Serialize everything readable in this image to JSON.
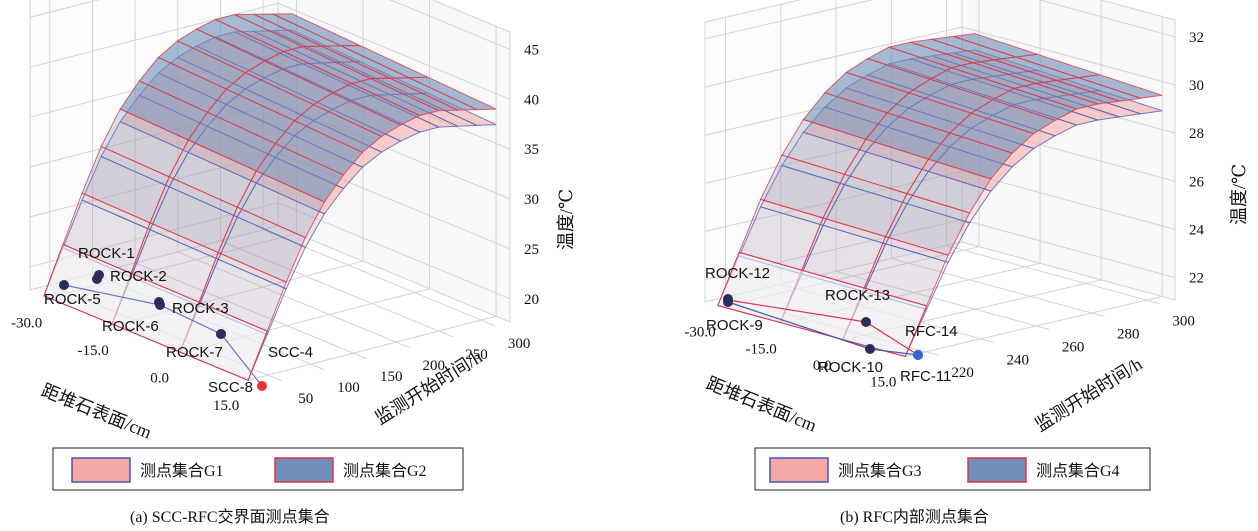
{
  "chart_data": [
    {
      "type": "surface3d",
      "caption": "(a)  SCC-RFC交界面测点集合",
      "xlabel": "距堆石表面/cm",
      "ylabel": "监测开始时间/h",
      "zlabel": "温度/℃",
      "x_ticks": [
        "-30.0",
        "-15.0",
        "0.0",
        "15.0"
      ],
      "y_ticks": [
        "50",
        "100",
        "150",
        "200",
        "250",
        "300"
      ],
      "z_ticks": [
        "20",
        "25",
        "30",
        "35",
        "40",
        "45"
      ],
      "grid": true,
      "legend": {
        "position": "bottom",
        "entries": [
          "测点集合G1",
          "测点集合G2"
        ]
      },
      "series": [
        {
          "name": "测点集合G1",
          "color": "#f4a8a4",
          "edge": "#4455bb"
        },
        {
          "name": "测点集合G2",
          "color": "#6f8fb8",
          "edge": "#dd3344"
        }
      ],
      "points": [
        "ROCK-1",
        "ROCK-2",
        "ROCK-3",
        "ROCK-5",
        "ROCK-6",
        "ROCK-7",
        "SCC-4",
        "SCC-8"
      ]
    },
    {
      "type": "surface3d",
      "caption": "(b)  RFC内部测点集合",
      "xlabel": "距堆石表面/cm",
      "ylabel": "监测开始时间/h",
      "zlabel": "温度/℃",
      "x_ticks": [
        "-30.0",
        "-15.0",
        "0.0",
        "15.0"
      ],
      "y_ticks": [
        "220",
        "240",
        "260",
        "280",
        "300"
      ],
      "z_ticks": [
        "22",
        "24",
        "26",
        "28",
        "30",
        "32"
      ],
      "grid": true,
      "legend": {
        "position": "bottom",
        "entries": [
          "测点集合G3",
          "测点集合G4"
        ]
      },
      "series": [
        {
          "name": "测点集合G3",
          "color": "#f4a8a4",
          "edge": "#4455bb"
        },
        {
          "name": "测点集合G4",
          "color": "#6f8fb8",
          "edge": "#dd3344"
        }
      ],
      "points": [
        "ROCK-12",
        "ROCK-13",
        "ROCK-9",
        "ROCK-10",
        "RFC-14",
        "RFC-11"
      ]
    }
  ]
}
